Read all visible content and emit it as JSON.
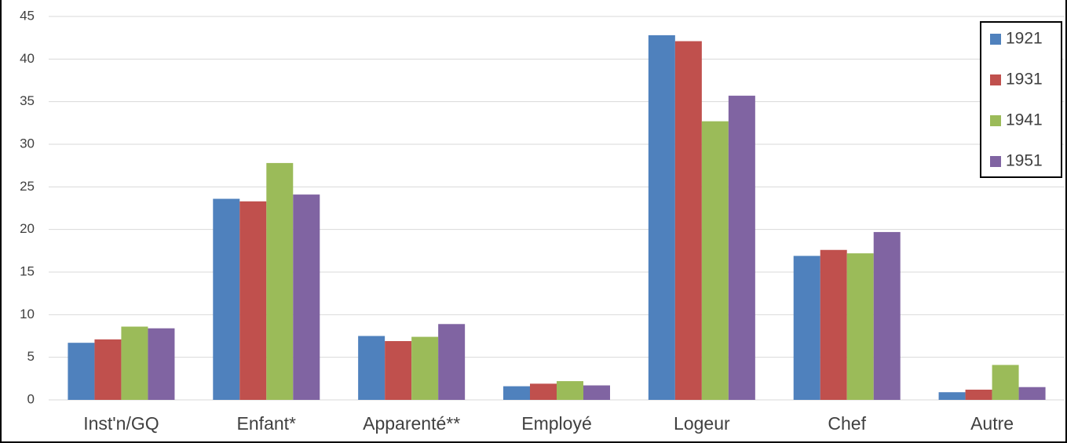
{
  "chart_data": {
    "type": "bar",
    "categories": [
      "Inst'n/GQ",
      "Enfant*",
      "Apparenté**",
      "Employé",
      "Logeur",
      "Chef",
      "Autre"
    ],
    "series": [
      {
        "name": "1921",
        "color": "#4f81bd",
        "values": [
          6.7,
          23.6,
          7.5,
          1.6,
          42.8,
          16.9,
          0.9
        ]
      },
      {
        "name": "1931",
        "color": "#c0504d",
        "values": [
          7.1,
          23.3,
          6.9,
          1.9,
          42.1,
          17.6,
          1.2
        ]
      },
      {
        "name": "1941",
        "color": "#9bbb59",
        "values": [
          8.6,
          27.8,
          7.4,
          2.2,
          32.7,
          17.2,
          4.1
        ]
      },
      {
        "name": "1951",
        "color": "#8064a2",
        "values": [
          8.4,
          24.1,
          8.9,
          1.7,
          35.7,
          19.7,
          1.5
        ]
      }
    ],
    "ylim": [
      0,
      45
    ],
    "yticks": [
      0,
      5,
      10,
      15,
      20,
      25,
      30,
      35,
      40,
      45
    ],
    "grid": true,
    "legend": "upper-right"
  }
}
